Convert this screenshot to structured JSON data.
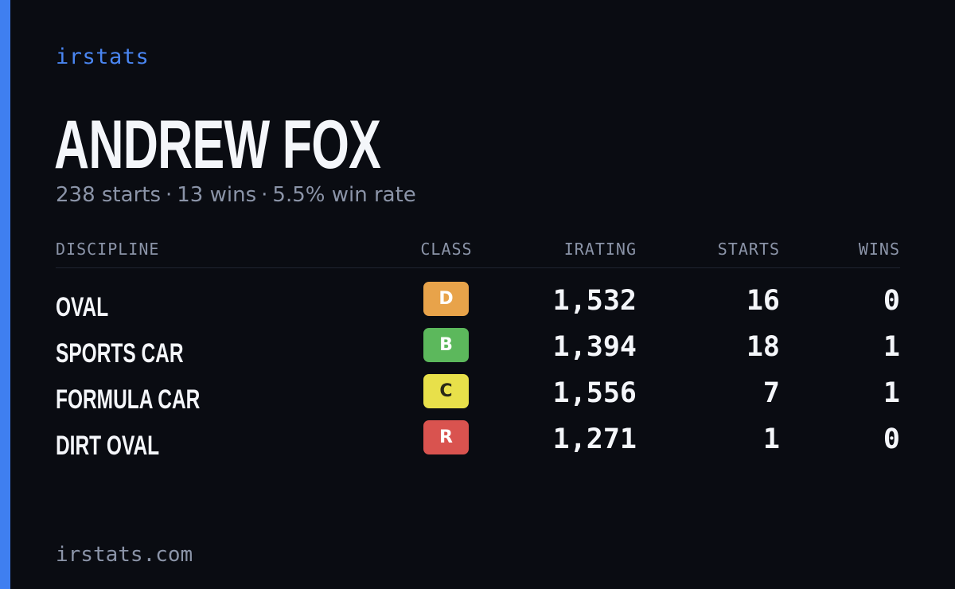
{
  "brand": "irstats",
  "driver": {
    "name": "ANDREW FOX",
    "starts_text": "238 starts",
    "wins_text": "13 wins",
    "win_rate_text": "5.5% win rate",
    "separator": "·"
  },
  "table": {
    "headers": {
      "discipline": "DISCIPLINE",
      "class": "CLASS",
      "irating": "IRATING",
      "starts": "STARTS",
      "wins": "WINS"
    },
    "rows": [
      {
        "discipline": "OVAL",
        "class": "D",
        "class_color": "#e8a34a",
        "class_text_color": "#ffffff",
        "irating": "1,532",
        "starts": "16",
        "wins": "0"
      },
      {
        "discipline": "SPORTS CAR",
        "class": "B",
        "class_color": "#5cb85c",
        "class_text_color": "#ffffff",
        "irating": "1,394",
        "starts": "18",
        "wins": "1"
      },
      {
        "discipline": "FORMULA CAR",
        "class": "C",
        "class_color": "#e8e04a",
        "class_text_color": "#2a2a18",
        "irating": "1,556",
        "starts": "7",
        "wins": "1"
      },
      {
        "discipline": "DIRT OVAL",
        "class": "R",
        "class_color": "#d9534f",
        "class_text_color": "#ffffff",
        "irating": "1,271",
        "starts": "1",
        "wins": "0"
      }
    ]
  },
  "footer": "irstats.com",
  "colors": {
    "accent": "#3f7ff0",
    "background": "#0a0c12",
    "muted_text": "#8b94a8",
    "primary_text": "#f4f6fa"
  }
}
